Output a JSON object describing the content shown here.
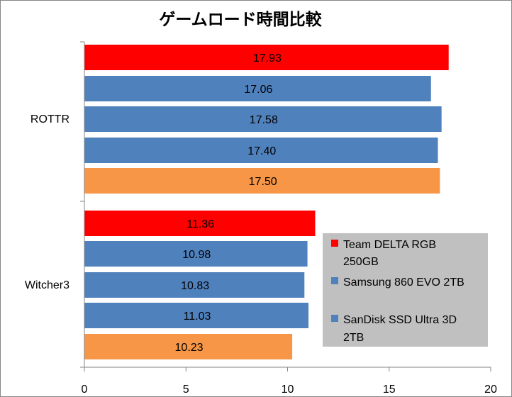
{
  "chart_data": {
    "type": "bar",
    "orientation": "horizontal",
    "title": "ゲームロード時間比較",
    "xlabel": "",
    "ylabel": "",
    "xlim": [
      0,
      20
    ],
    "x_ticks": [
      0,
      5,
      10,
      15,
      20
    ],
    "grid": false,
    "legend_position": "right",
    "categories": [
      "ROTTR",
      "Witcher3"
    ],
    "bars": [
      {
        "category": "ROTTR",
        "value": 17.93,
        "label": "17.93",
        "color": "#ff0000"
      },
      {
        "category": "ROTTR",
        "value": 17.06,
        "label": "17.06",
        "color": "#4f81bd"
      },
      {
        "category": "ROTTR",
        "value": 17.58,
        "label": "17.58",
        "color": "#4f81bd"
      },
      {
        "category": "ROTTR",
        "value": 17.4,
        "label": "17.40",
        "color": "#4f81bd"
      },
      {
        "category": "ROTTR",
        "value": 17.5,
        "label": "17.50",
        "color": "#f79646"
      },
      {
        "category": "Witcher3",
        "value": 11.36,
        "label": "11.36",
        "color": "#ff0000"
      },
      {
        "category": "Witcher3",
        "value": 10.98,
        "label": "10.98",
        "color": "#4f81bd"
      },
      {
        "category": "Witcher3",
        "value": 10.83,
        "label": "10.83",
        "color": "#4f81bd"
      },
      {
        "category": "Witcher3",
        "value": 11.03,
        "label": "11.03",
        "color": "#4f81bd"
      },
      {
        "category": "Witcher3",
        "value": 10.23,
        "label": "10.23",
        "color": "#f79646"
      }
    ],
    "legend": [
      {
        "lines": [
          "Team DELTA RGB",
          "250GB"
        ],
        "color": "#ff0000"
      },
      {
        "lines": [
          "Samsung 860 EVO 2TB"
        ],
        "color": "#4f81bd"
      },
      {
        "lines": [
          "SanDisk SSD Ultra 3D",
          "2TB"
        ],
        "color": "#4f81bd"
      }
    ],
    "colors": {
      "team_delta": "#ff0000",
      "blue_series": "#4f81bd",
      "orange_series": "#f79646",
      "legend_background": "#c0c0c0"
    }
  }
}
